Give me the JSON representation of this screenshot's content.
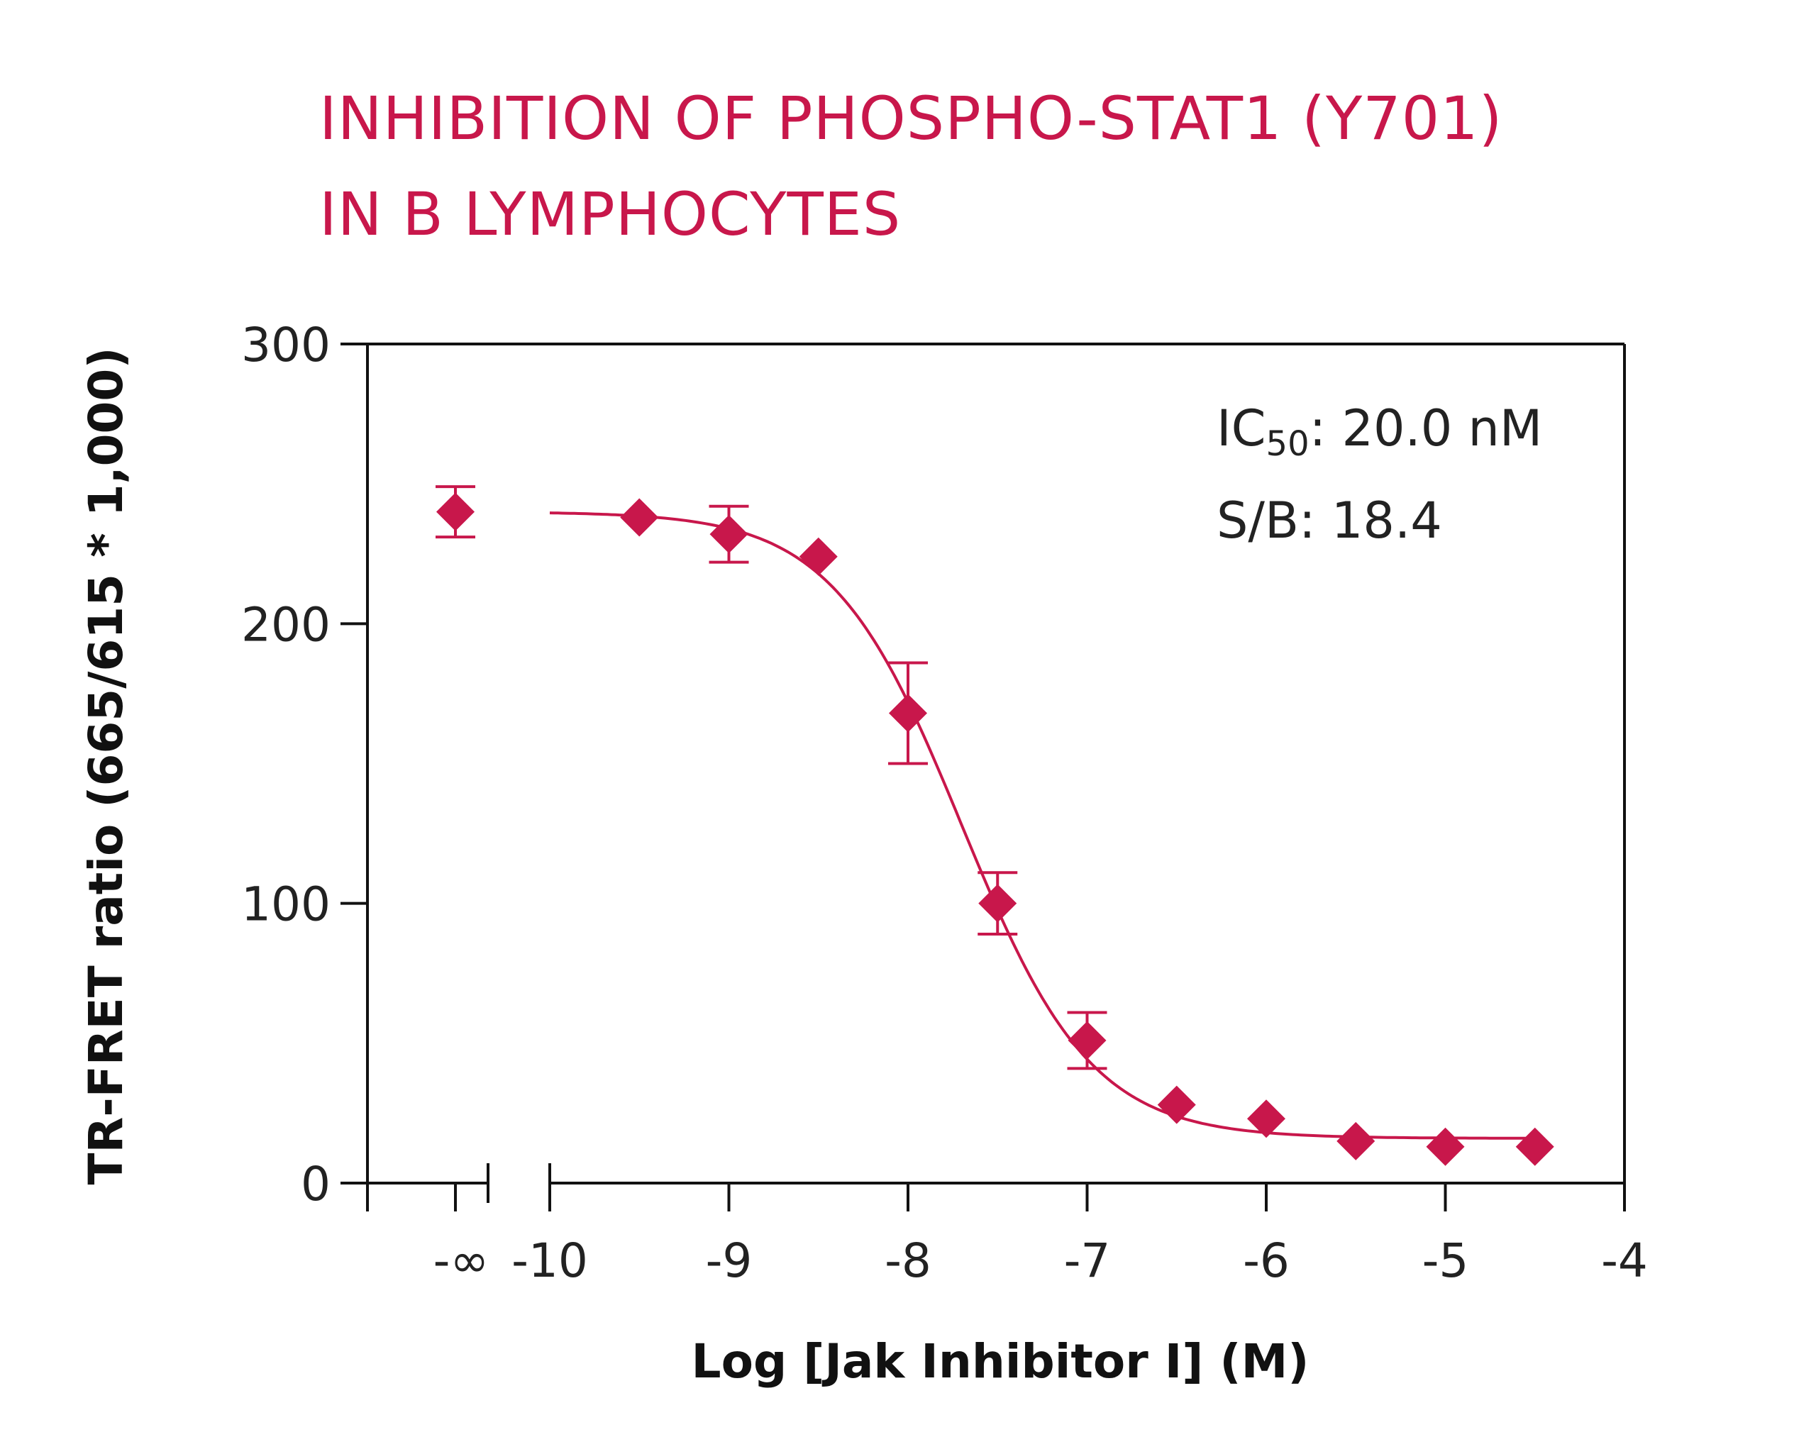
{
  "chart_data": {
    "type": "scatter",
    "title_lines": [
      "INHIBITION OF PHOSPHO-STAT1 (Y701)",
      "IN B LYMPHOCYTES"
    ],
    "xlabel": "Log [Jak Inhibitor I] (M)",
    "ylabel": "TR-FRET ratio (665/615 * 1,000)",
    "xlim": [
      -10,
      -4
    ],
    "ylim": [
      0,
      300
    ],
    "x_ticks": [
      "-∞",
      "-10",
      "-9",
      "-8",
      "-7",
      "-6",
      "-5",
      "-4"
    ],
    "y_ticks": [
      "0",
      "100",
      "200",
      "300"
    ],
    "axis_break": true,
    "grid": false,
    "annotations": {
      "ic50_prefix": "IC",
      "ic50_sub": "50",
      "ic50_value": ": 20.0 nM",
      "sb": "S/B: 18.4"
    },
    "control_point": {
      "x_label": "-∞",
      "y": 240,
      "err": 9
    },
    "series": [
      {
        "x": [
          -9.5,
          -9.0,
          -8.5,
          -8.0,
          -7.5,
          -7.0,
          -6.5,
          -6.0,
          -5.5,
          -5.0,
          -4.5
        ],
        "y": [
          238,
          232,
          224,
          168,
          100,
          51,
          28,
          23,
          15,
          13,
          13
        ],
        "err": [
          0,
          10,
          0,
          18,
          11,
          10,
          0,
          0,
          0,
          0,
          0
        ]
      }
    ],
    "fit": {
      "top": 240,
      "bottom": 16,
      "log_ic50": -7.7,
      "hill": 1.2
    },
    "color": "#c8174b"
  }
}
